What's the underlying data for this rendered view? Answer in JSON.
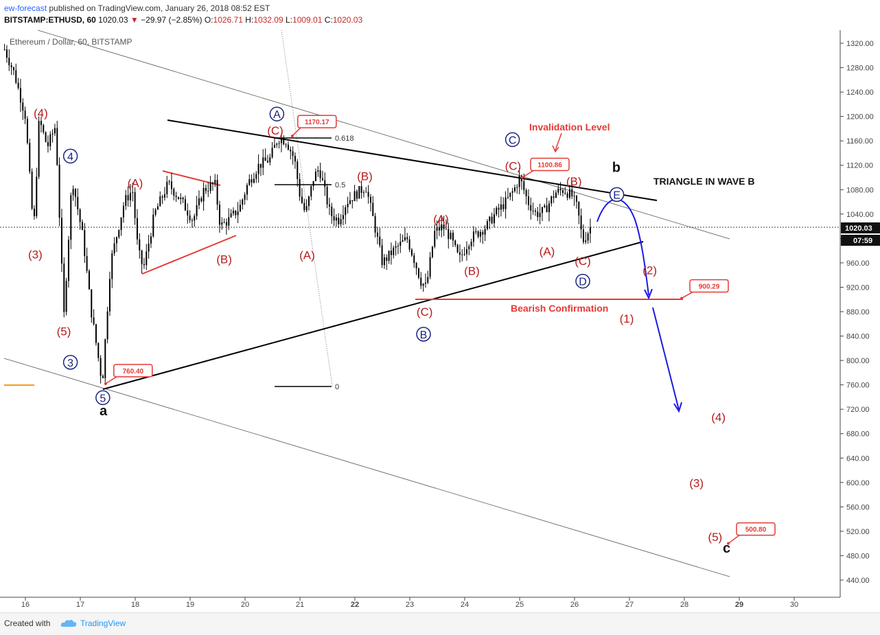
{
  "header": {
    "publisher": "ew-forecast",
    "published_text": "published on TradingView.com, January 26, 2018 08:52 EST",
    "symbol": "BITSTAMP:ETHUSD, 60",
    "last": "1020.03",
    "change": "−29.97 (−2.85%)",
    "o_label": "O:",
    "o_value": "1026.71",
    "h_label": "H:",
    "h_value": "1032.09",
    "l_label": "L:",
    "l_value": "1009.01",
    "c_label": "C:",
    "c_value": "1020.03"
  },
  "footer": {
    "created_with": "Created with",
    "brand": "TradingView"
  },
  "colors": {
    "wave_red": "#b71c1c",
    "wave_blue": "#1a237e",
    "arrow_blue": "#1a1ae6",
    "callout_red": "#e53935",
    "candle": "#000000"
  },
  "chart_data": {
    "type": "candlestick",
    "title": "Ethereum / Dollar, 60, BITSTAMP",
    "y_axis_ticks": [
      1320,
      1280,
      1240,
      1200,
      1160,
      1120,
      1080,
      1040,
      1000,
      960,
      920,
      880,
      840,
      800,
      760,
      720,
      680,
      640,
      600,
      560,
      520,
      480,
      440
    ],
    "ylim": [
      428,
      1335
    ],
    "x_tick_labels": [
      "16",
      "17",
      "18",
      "19",
      "20",
      "21",
      "22",
      "23",
      "24",
      "25",
      "26",
      "27",
      "28",
      "29",
      "30"
    ],
    "x_ticks_day": [
      16,
      17,
      18,
      19,
      20,
      21,
      22,
      23,
      24,
      25,
      26,
      27,
      28,
      29,
      30
    ],
    "xlim": [
      15.6,
      30.8
    ],
    "price_label": "1020.03",
    "countdown_label": "07:59",
    "price_path": [
      [
        15.62,
        1310
      ],
      [
        15.8,
        1270
      ],
      [
        16.0,
        1200
      ],
      [
        16.15,
        1010
      ],
      [
        16.25,
        1195
      ],
      [
        16.4,
        1150
      ],
      [
        16.55,
        1185
      ],
      [
        16.7,
        870
      ],
      [
        16.85,
        1100
      ],
      [
        17.05,
        1000
      ],
      [
        17.2,
        880
      ],
      [
        17.4,
        762
      ],
      [
        17.55,
        960
      ],
      [
        17.8,
        1060
      ],
      [
        17.95,
        1080
      ],
      [
        18.05,
        980
      ],
      [
        18.15,
        950
      ],
      [
        18.35,
        1040
      ],
      [
        18.6,
        1090
      ],
      [
        18.85,
        1060
      ],
      [
        19.05,
        1030
      ],
      [
        19.25,
        1080
      ],
      [
        19.45,
        1090
      ],
      [
        19.55,
        1020
      ],
      [
        19.7,
        1030
      ],
      [
        19.9,
        1050
      ],
      [
        20.05,
        1090
      ],
      [
        20.25,
        1120
      ],
      [
        20.45,
        1130
      ],
      [
        20.6,
        1165
      ],
      [
        20.75,
        1160
      ],
      [
        20.9,
        1130
      ],
      [
        21.0,
        1070
      ],
      [
        21.1,
        1040
      ],
      [
        21.25,
        1100
      ],
      [
        21.35,
        1115
      ],
      [
        21.55,
        1040
      ],
      [
        21.7,
        1030
      ],
      [
        21.85,
        1060
      ],
      [
        22.05,
        1075
      ],
      [
        22.2,
        1085
      ],
      [
        22.35,
        1025
      ],
      [
        22.5,
        960
      ],
      [
        22.7,
        980
      ],
      [
        22.95,
        1000
      ],
      [
        23.1,
        960
      ],
      [
        23.2,
        930
      ],
      [
        23.3,
        920
      ],
      [
        23.45,
        1010
      ],
      [
        23.6,
        1020
      ],
      [
        23.75,
        1000
      ],
      [
        23.9,
        965
      ],
      [
        24.1,
        1000
      ],
      [
        24.25,
        1010
      ],
      [
        24.4,
        1020
      ],
      [
        24.55,
        1040
      ],
      [
        24.75,
        1060
      ],
      [
        24.9,
        1080
      ],
      [
        25.0,
        1100
      ],
      [
        25.15,
        1060
      ],
      [
        25.3,
        1040
      ],
      [
        25.45,
        1045
      ],
      [
        25.65,
        1075
      ],
      [
        25.8,
        1080
      ],
      [
        25.95,
        1070
      ],
      [
        26.05,
        1050
      ],
      [
        26.15,
        995
      ],
      [
        26.3,
        1020
      ]
    ],
    "fib_levels": [
      {
        "label": "0.618"
      },
      {
        "label": "0.5"
      },
      {
        "label": "0"
      }
    ],
    "price_callouts": [
      {
        "label": "1170.17",
        "x": 20.86,
        "y": 1168
      },
      {
        "label": "1100.86",
        "x": 25.05,
        "y": 1100
      },
      {
        "label": "760.40",
        "x": 17.46,
        "y": 762
      },
      {
        "label": "900.29",
        "x": 27.95,
        "y": 902
      },
      {
        "label": "500.80",
        "x": 28.8,
        "y": 500
      }
    ],
    "annotations": {
      "invalidation": "Invalidation Level",
      "triangle": "TRIANGLE IN WAVE B",
      "bearish": "Bearish Confirmation"
    },
    "wave_labels_red": [
      {
        "t": "(4)",
        "x": 16.28,
        "y": 1206
      },
      {
        "t": "(3)",
        "x": 16.18,
        "y": 974
      },
      {
        "t": "(5)",
        "x": 16.7,
        "y": 848
      },
      {
        "t": "(A)",
        "x": 18.0,
        "y": 1091
      },
      {
        "t": "(B)",
        "x": 19.62,
        "y": 966
      },
      {
        "t": "(C)",
        "x": 20.55,
        "y": 1177
      },
      {
        "t": "(A)",
        "x": 21.13,
        "y": 973
      },
      {
        "t": "(B)",
        "x": 22.18,
        "y": 1102
      },
      {
        "t": "(A)",
        "x": 23.57,
        "y": 1032
      },
      {
        "t": "(C)",
        "x": 23.27,
        "y": 880
      },
      {
        "t": "(B)",
        "x": 24.13,
        "y": 947
      },
      {
        "t": "(C)",
        "x": 24.88,
        "y": 1119
      },
      {
        "t": "(A)",
        "x": 25.5,
        "y": 979
      },
      {
        "t": "(B)",
        "x": 25.99,
        "y": 1094
      },
      {
        "t": "(C)",
        "x": 26.15,
        "y": 963
      },
      {
        "t": "(2)",
        "x": 27.37,
        "y": 948
      },
      {
        "t": "(1)",
        "x": 26.95,
        "y": 869
      },
      {
        "t": "(4)",
        "x": 28.62,
        "y": 707
      },
      {
        "t": "(3)",
        "x": 28.22,
        "y": 599
      },
      {
        "t": "(5)",
        "x": 28.56,
        "y": 511
      }
    ],
    "wave_labels_blue": [
      {
        "t": "4",
        "x": 16.82,
        "y": 1135
      },
      {
        "t": "3",
        "x": 16.82,
        "y": 797
      },
      {
        "t": "5",
        "x": 17.41,
        "y": 739
      },
      {
        "t": "A",
        "x": 20.58,
        "y": 1204
      },
      {
        "t": "C",
        "x": 24.87,
        "y": 1162
      },
      {
        "t": "B",
        "x": 23.25,
        "y": 843
      },
      {
        "t": "D",
        "x": 26.15,
        "y": 930
      },
      {
        "t": "E",
        "x": 26.77,
        "y": 1072
      }
    ],
    "wave_labels_black": [
      {
        "t": "a",
        "x": 17.42,
        "y": 718
      },
      {
        "t": "b",
        "x": 26.76,
        "y": 1117
      },
      {
        "t": "c",
        "x": 28.77,
        "y": 493
      }
    ]
  }
}
